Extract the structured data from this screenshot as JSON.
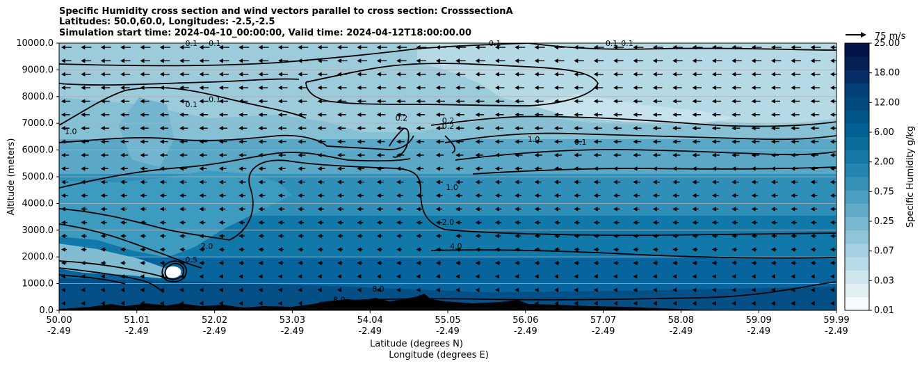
{
  "chart_data": {
    "type": "contour",
    "title": [
      "Specific Humidity cross section and wind vectors parallel to cross section: CrosssectionA",
      "Latitudes: 50.0,60.0, Longitudes: -2.5,-2.5",
      "Simulation start time: 2024-04-10_00:00:00, Valid time: 2024-04-12T18:00:00.00"
    ],
    "xlabel_lat": "Latitude (degrees N)",
    "xlabel_lon": "Longitude (degrees E)",
    "ylabel": "Altitude (meters)",
    "ylim": [
      0,
      10000
    ],
    "xlim": [
      50.0,
      59.99
    ],
    "x_tick_labels": [
      [
        "50.00",
        "-2.49"
      ],
      [
        "51.01",
        "-2.49"
      ],
      [
        "52.02",
        "-2.49"
      ],
      [
        "53.03",
        "-2.49"
      ],
      [
        "54.04",
        "-2.49"
      ],
      [
        "55.05",
        "-2.49"
      ],
      [
        "56.06",
        "-2.49"
      ],
      [
        "57.07",
        "-2.49"
      ],
      [
        "58.08",
        "-2.49"
      ],
      [
        "59.09",
        "-2.49"
      ],
      [
        "59.99",
        "-2.49"
      ]
    ],
    "y_tick_labels": [
      "0.0",
      "1000.0",
      "2000.0",
      "3000.0",
      "4000.0",
      "5000.0",
      "6000.0",
      "7000.0",
      "8000.0",
      "9000.0",
      "10000.0"
    ],
    "grid": "horizontal",
    "colorbar": {
      "label": "Specific Humidity g/kg",
      "tick_labels": [
        "0.01",
        "0.03",
        "0.07",
        "0.25",
        "0.75",
        "2.00",
        "6.00",
        "12.00",
        "18.00",
        "25.00"
      ],
      "colors": [
        "#f7fbff",
        "#e2eff4",
        "#cfe5ee",
        "#b9dbe8",
        "#a4d0e1",
        "#8fc4d9",
        "#78b8d0",
        "#62abc8",
        "#4d9ec0",
        "#3891b8",
        "#2585b0",
        "#1479a6",
        "#0a6d9e",
        "#046195",
        "#02558a",
        "#034a7f",
        "#043f75",
        "#052f64",
        "#061f55",
        "#031347"
      ]
    },
    "wind_key": {
      "label": "75 m/s"
    },
    "contour_labels": [
      {
        "text": "0.1",
        "lat": 51.7,
        "alt": 9900
      },
      {
        "text": "0.1",
        "lat": 52.0,
        "alt": 9900
      },
      {
        "text": "0.1",
        "lat": 55.6,
        "alt": 9900
      },
      {
        "text": "0.1",
        "lat": 57.1,
        "alt": 9900
      },
      {
        "text": "0.1",
        "lat": 57.3,
        "alt": 9900
      },
      {
        "text": "1.0",
        "lat": 50.15,
        "alt": 6600
      },
      {
        "text": "0.1",
        "lat": 51.7,
        "alt": 7600
      },
      {
        "text": "0.1",
        "lat": 52.0,
        "alt": 7800
      },
      {
        "text": "0.2",
        "lat": 55.0,
        "alt": 7000
      },
      {
        "text": "0.2",
        "lat": 55.0,
        "alt": 6800
      },
      {
        "text": "0.2",
        "lat": 54.4,
        "alt": 7100
      },
      {
        "text": "1.0",
        "lat": 55.05,
        "alt": 4500
      },
      {
        "text": "2.0",
        "lat": 55.0,
        "alt": 3200
      },
      {
        "text": "4.0",
        "lat": 55.1,
        "alt": 2300
      },
      {
        "text": "2.0",
        "lat": 51.9,
        "alt": 2300
      },
      {
        "text": "0.5",
        "lat": 51.7,
        "alt": 1800
      },
      {
        "text": "8.0",
        "lat": 54.1,
        "alt": 700
      },
      {
        "text": "8.0",
        "lat": 53.6,
        "alt": 300
      },
      {
        "text": "0.1",
        "lat": 56.7,
        "alt": 6200
      },
      {
        "text": "1.0",
        "lat": 56.1,
        "alt": 6300
      }
    ],
    "contour_levels": [
      0.1,
      0.2,
      0.5,
      1.0,
      2.0,
      4.0,
      8.0
    ],
    "wind_vectors": "nearly uniform southward (pointing toward 50N) arrows on a regular grid; longer aloft, shorter near the surface"
  }
}
